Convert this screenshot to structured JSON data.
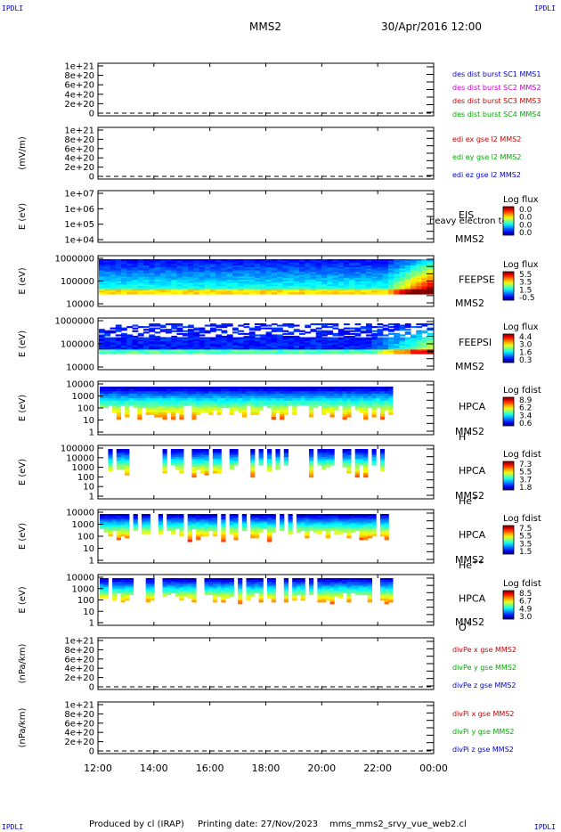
{
  "corners": {
    "tl": "IPDLI",
    "tr": "IPDLI",
    "bl": "IPDLI",
    "br": "IPDLI"
  },
  "header": {
    "spacecraft": "MMS2",
    "datetime": "30/Apr/2016 12:00"
  },
  "footer": {
    "producer": "Produced by cl (IRAP)",
    "printing": "Printing date: 27/Nov/2023",
    "file": "mms_mms2_srvy_vue_web2.cl"
  },
  "chart_data": {
    "type": "multi-panel time series / spectrograms",
    "x_ticks": [
      "12:00",
      "14:00",
      "16:00",
      "18:00",
      "20:00",
      "22:00",
      "00:00"
    ],
    "x_range": [
      "12:00",
      "00:00"
    ],
    "panels": [
      {
        "id": "des",
        "type": "line",
        "ylabel": "",
        "yticks": [
          "1e+21",
          "8e+20",
          "6e+20",
          "4e+20",
          "2e+20",
          "0"
        ],
        "legend": [
          {
            "text": "des dist burst SC1 MMS1",
            "color": "#0000cc"
          },
          {
            "text": "des dist burst SC2 MMS2",
            "color": "#cc00cc"
          },
          {
            "text": "des dist burst SC3 MMS3",
            "color": "#cc0000"
          },
          {
            "text": "des dist burst SC4 MMS4",
            "color": "#00aa00"
          }
        ]
      },
      {
        "id": "edi",
        "type": "line",
        "ylabel": "(mV/m)",
        "yticks": [
          "1e+21",
          "8e+20",
          "6e+20",
          "4e+20",
          "2e+20",
          "0"
        ],
        "legend": [
          {
            "text": "edi ex gse l2 MMS2",
            "color": "#cc0000"
          },
          {
            "text": "edi ey gse l2 MMS2",
            "color": "#00aa00"
          },
          {
            "text": "edi ez gse l2 MMS2",
            "color": "#0000cc"
          }
        ]
      },
      {
        "id": "eis",
        "type": "heatmap",
        "ylabel": "E (eV)",
        "yticks": [
          "1e+07",
          "1e+06",
          "1e+05",
          "1e+04"
        ],
        "instrument": "EIS",
        "sc": "MMS2",
        "extra": "heavy electron to",
        "cb_title": "Log flux",
        "cb_ticks": [
          "0.0",
          "0.0",
          "0.0",
          "0.0"
        ]
      },
      {
        "id": "feepse",
        "type": "heatmap",
        "ylabel": "E (eV)",
        "yticks": [
          "1000000",
          "100000",
          "10000"
        ],
        "instrument": "FEEPSE",
        "sc": "MMS2",
        "cb_title": "Log flux",
        "cb_ticks": [
          "5.5",
          "3.5",
          "1.5",
          "-0.5"
        ]
      },
      {
        "id": "feepsi",
        "type": "heatmap",
        "ylabel": "E (eV)",
        "yticks": [
          "1000000",
          "100000",
          "10000"
        ],
        "instrument": "FEEPSI",
        "sc": "MMS2",
        "cb_title": "Log flux",
        "cb_ticks": [
          "4.4",
          "3.0",
          "1.6",
          "0.3"
        ]
      },
      {
        "id": "hpca_h",
        "type": "heatmap",
        "ylabel": "E (eV)",
        "yticks": [
          "10000",
          "1000",
          "100",
          "10",
          "1"
        ],
        "instrument": "HPCA",
        "sc": "MMS2",
        "species": "H",
        "charge": "+",
        "cb_title": "Log fdist",
        "cb_ticks": [
          "8.9",
          "6.2",
          "3.4",
          "0.6"
        ]
      },
      {
        "id": "hpca_he",
        "type": "heatmap",
        "ylabel": "E (eV)",
        "yticks": [
          "100000",
          "10000",
          "1000",
          "100",
          "10",
          "1"
        ],
        "instrument": "HPCA",
        "sc": "MMS2",
        "species": "He",
        "charge": "+",
        "cb_title": "Log fdist",
        "cb_ticks": [
          "7.3",
          "5.5",
          "3.7",
          "1.8"
        ]
      },
      {
        "id": "hpca_hepp",
        "type": "heatmap",
        "ylabel": "E (eV)",
        "yticks": [
          "10000",
          "1000",
          "100",
          "10",
          "1"
        ],
        "instrument": "HPCA",
        "sc": "MMS2",
        "species": "He",
        "charge": "++",
        "cb_title": "Log fdist",
        "cb_ticks": [
          "7.5",
          "5.5",
          "3.5",
          "1.5"
        ]
      },
      {
        "id": "hpca_o",
        "type": "heatmap",
        "ylabel": "E (eV)",
        "yticks": [
          "10000",
          "1000",
          "100",
          "10",
          "1"
        ],
        "instrument": "HPCA",
        "sc": "MMS2",
        "species": "O",
        "charge": "+",
        "cb_title": "Log fdist",
        "cb_ticks": [
          "8.5",
          "6.7",
          "4.9",
          "3.0"
        ]
      },
      {
        "id": "divpe",
        "type": "line",
        "ylabel": "(nPa/km)",
        "yticks": [
          "1e+21",
          "8e+20",
          "6e+20",
          "4e+20",
          "2e+20",
          "0"
        ],
        "legend": [
          {
            "text": "divPe x gse MMS2",
            "color": "#cc0000"
          },
          {
            "text": "divPe y gse MMS2",
            "color": "#00aa00"
          },
          {
            "text": "divPe z gse MMS2",
            "color": "#0000cc"
          }
        ]
      },
      {
        "id": "divpi",
        "type": "line",
        "ylabel": "(nPa/km)",
        "yticks": [
          "1e+21",
          "8e+20",
          "6e+20",
          "4e+20",
          "2e+20",
          "0"
        ],
        "legend": [
          {
            "text": "divPi x gse MMS2",
            "color": "#cc0000"
          },
          {
            "text": "divPi y gse MMS2",
            "color": "#00aa00"
          },
          {
            "text": "divPi z gse MMS2",
            "color": "#0000cc"
          }
        ]
      }
    ]
  }
}
